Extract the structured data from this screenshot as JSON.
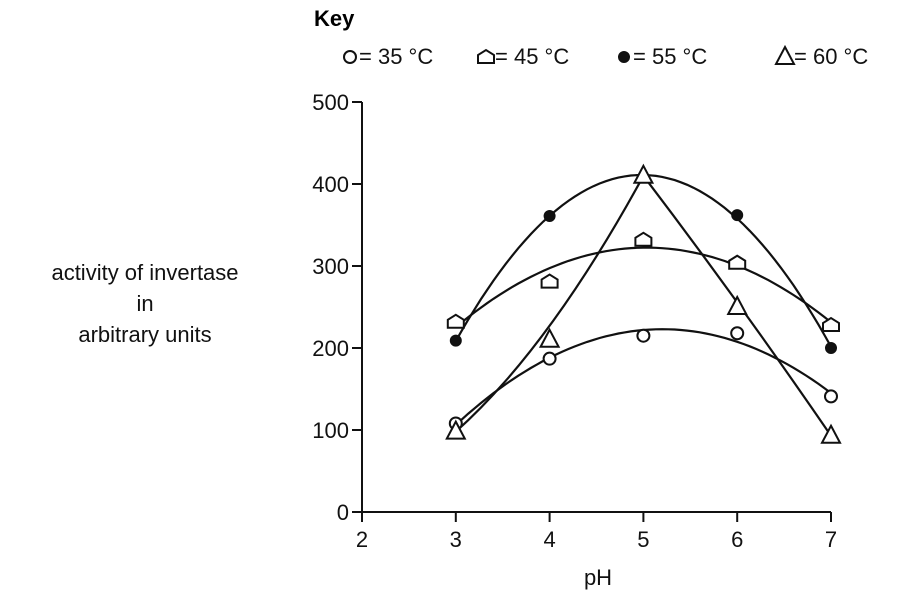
{
  "key": {
    "title": "Key",
    "items": [
      {
        "symbol": "circle-open",
        "label": "= 35 °C"
      },
      {
        "symbol": "pentagon-open",
        "label": "= 45 °C"
      },
      {
        "symbol": "circle-filled",
        "label": "= 55 °C"
      },
      {
        "symbol": "triangle-open",
        "label": "= 60 °C"
      }
    ]
  },
  "chart_data": {
    "type": "scatter",
    "title": "",
    "xlabel": "pH",
    "ylabel_lines": [
      "activity of invertase",
      "in",
      "arbitrary units"
    ],
    "xlim": [
      2,
      7
    ],
    "ylim": [
      0,
      500
    ],
    "xticks": [
      2,
      3,
      4,
      5,
      6,
      7
    ],
    "yticks": [
      0,
      100,
      200,
      300,
      400,
      500
    ],
    "grid": false,
    "legend": "top",
    "fitted_curves": true,
    "series": [
      {
        "name": "35 °C",
        "marker": "circle-open",
        "x": [
          3,
          4,
          5,
          6,
          7
        ],
        "y": [
          108,
          187,
          215,
          218,
          141
        ]
      },
      {
        "name": "45 °C",
        "marker": "pentagon-open",
        "x": [
          3,
          4,
          5,
          6,
          7
        ],
        "y": [
          232,
          281,
          332,
          304,
          228
        ]
      },
      {
        "name": "55 °C",
        "marker": "circle-filled",
        "x": [
          3,
          4,
          5,
          6,
          7
        ],
        "y": [
          209,
          361,
          408,
          362,
          200
        ]
      },
      {
        "name": "60 °C",
        "marker": "triangle-open",
        "x": [
          3,
          4,
          5,
          6,
          7
        ],
        "y": [
          98,
          210,
          410,
          250,
          93
        ]
      }
    ]
  }
}
